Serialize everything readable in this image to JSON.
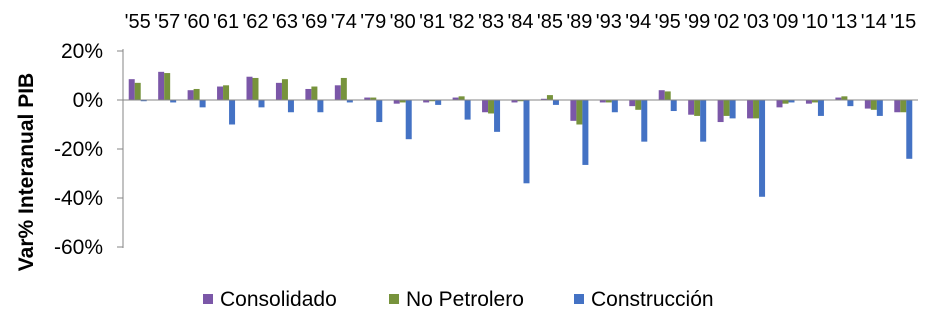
{
  "chart_data": {
    "type": "bar",
    "title": "",
    "xlabel": "",
    "ylabel": "Var% Interanual PIB",
    "ylim": [
      -60,
      20
    ],
    "yticks": [
      20,
      0,
      -20,
      -40,
      -60
    ],
    "ytick_labels": [
      "20%",
      "0%",
      "-20%",
      "-40%",
      "-60%"
    ],
    "categories": [
      "'55",
      "'57",
      "'60",
      "'61",
      "'62",
      "'63",
      "'69",
      "'74",
      "'79",
      "'80",
      "'81",
      "'82",
      "'83",
      "'84",
      "'85",
      "'89",
      "'93",
      "'94",
      "'95",
      "'99",
      "'02",
      "'03",
      "'09",
      "'10",
      "'13",
      "'14",
      "'15"
    ],
    "series": [
      {
        "name": "Consolidado",
        "color": "#7b57a8",
        "values": [
          8.5,
          11.5,
          4.0,
          5.5,
          9.5,
          7.0,
          4.5,
          6.0,
          1.0,
          -1.5,
          -1.0,
          1.0,
          -5.0,
          -1.0,
          0.5,
          -8.5,
          -1.0,
          -2.5,
          4.0,
          -6.0,
          -9.0,
          -7.5,
          -3.0,
          -1.5,
          1.0,
          -3.5,
          -5.0
        ]
      },
      {
        "name": "No Petrolero",
        "color": "#77933c",
        "values": [
          7.0,
          11.0,
          4.5,
          6.0,
          9.0,
          8.5,
          5.5,
          9.0,
          1.0,
          -1.0,
          -0.5,
          1.5,
          -5.5,
          -0.5,
          2.0,
          -10.0,
          -1.0,
          -4.0,
          3.5,
          -6.5,
          -6.5,
          -7.5,
          -1.5,
          -1.0,
          1.5,
          -4.0,
          -5.0
        ]
      },
      {
        "name": "Construcción",
        "color": "#4472c4",
        "values": [
          -0.5,
          -1.0,
          -3.0,
          -10.0,
          -3.0,
          -5.0,
          -5.0,
          -1.0,
          -9.0,
          -16.0,
          -2.0,
          -8.0,
          -13.0,
          -34.0,
          -2.0,
          -26.5,
          -5.0,
          -17.0,
          -4.5,
          -17.0,
          -7.5,
          -39.5,
          -1.0,
          -6.5,
          -2.5,
          -6.5,
          -24.0
        ]
      }
    ],
    "grid": false,
    "legend_position": "bottom"
  }
}
